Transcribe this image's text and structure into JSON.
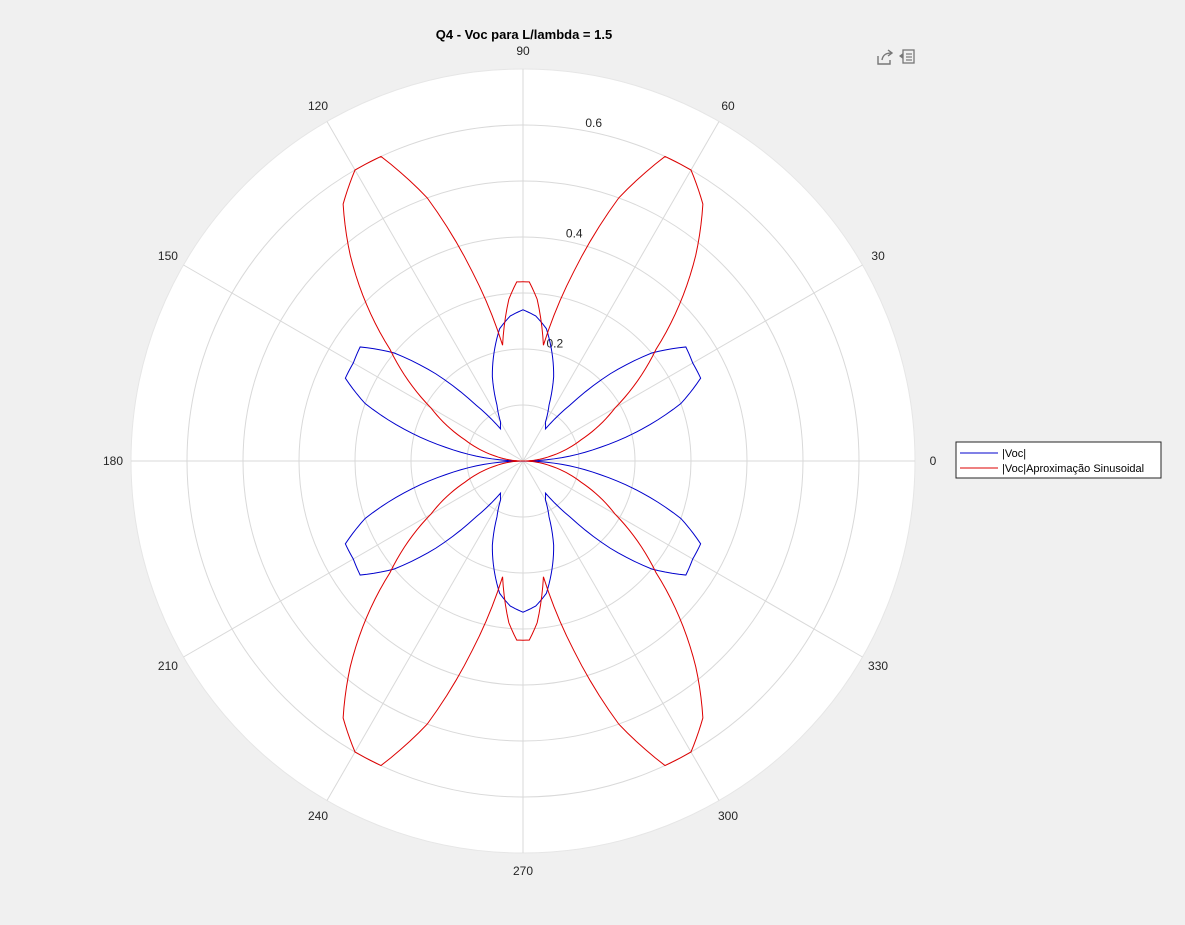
{
  "colors": {
    "figure_bg": "#f0f0f0",
    "axes_bg": "#ffffff",
    "grid": "#d9d9d9",
    "series1": "#0000cc",
    "series2": "#dd0000"
  },
  "toolbar": {
    "export_icon": "export-share-icon",
    "legend_icon": "legend-toggle-icon"
  },
  "chart_data": {
    "type": "polar-line",
    "title": "Q4 - Voc para L/lambda = 1.5",
    "theta_unit": "degrees",
    "theta_ticks": [
      0,
      30,
      60,
      90,
      120,
      150,
      180,
      210,
      240,
      270,
      300,
      330
    ],
    "theta_tick_labels": [
      "0",
      "30",
      "60",
      "90",
      "120",
      "150",
      "180",
      "210",
      "240",
      "270",
      "300",
      "330"
    ],
    "r_lim": [
      0,
      0.7
    ],
    "r_ticks": [
      0.2,
      0.4,
      0.6
    ],
    "r_tick_labels": [
      "0.2",
      "0.4",
      "0.6"
    ],
    "r_tick_angle_deg": 80,
    "grid": true,
    "legend_position": "right",
    "series": [
      {
        "name": "|Voc|",
        "theta": [
          0,
          10,
          20,
          25,
          30,
          35,
          40,
          45,
          50,
          55,
          60,
          65,
          70,
          75,
          80,
          85,
          90
        ],
        "r": [
          0.0,
          0.14,
          0.3,
          0.35,
          0.35,
          0.355,
          0.3,
          0.22,
          0.13,
          0.07,
          0.08,
          0.11,
          0.16,
          0.2,
          0.24,
          0.26,
          0.27
        ]
      },
      {
        "name": "|Voc|Aproximação Sinusoidal",
        "theta": [
          0,
          10,
          20,
          30,
          40,
          50,
          55,
          60,
          65,
          70,
          75,
          80,
          85,
          88,
          90
        ],
        "r": [
          0.0,
          0.05,
          0.11,
          0.19,
          0.31,
          0.48,
          0.56,
          0.6,
          0.6,
          0.5,
          0.35,
          0.21,
          0.29,
          0.32,
          0.32
        ]
      }
    ]
  }
}
